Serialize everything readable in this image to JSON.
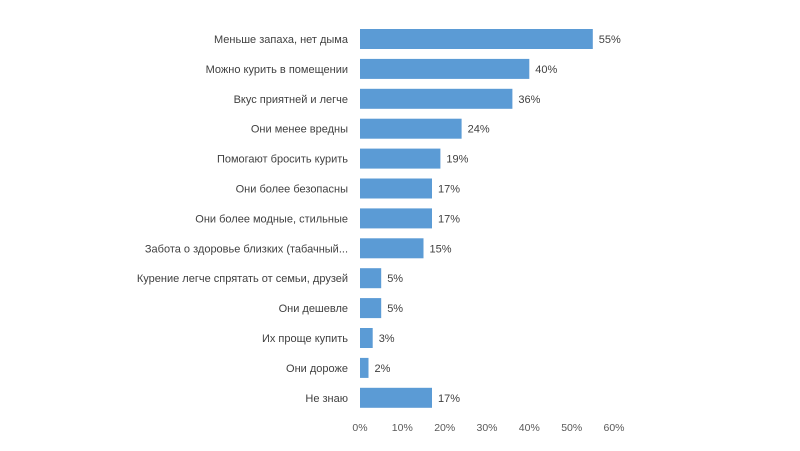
{
  "chart_data": {
    "type": "bar",
    "orientation": "horizontal",
    "categories": [
      "Меньше запаха, нет дыма",
      "Можно курить в помещении",
      "Вкус приятней и легче",
      "Они менее вредны",
      "Помогают бросить курить",
      "Они более безопасны",
      "Они более модные, стильные",
      "Забота о здоровье близких (табачный...",
      "Курение легче спрятать от семьи, друзей",
      "Они дешевле",
      "Их проще купить",
      "Они дороже",
      "Не знаю"
    ],
    "values": [
      55,
      40,
      36,
      24,
      19,
      17,
      17,
      15,
      5,
      5,
      3,
      2,
      17
    ],
    "data_labels": [
      "55%",
      "40%",
      "36%",
      "24%",
      "19%",
      "17%",
      "17%",
      "15%",
      "5%",
      "5%",
      "3%",
      "2%",
      "17%"
    ],
    "x_ticks": [
      0,
      10,
      20,
      30,
      40,
      50,
      60
    ],
    "x_tick_labels": [
      "0%",
      "10%",
      "20%",
      "30%",
      "40%",
      "50%",
      "60%"
    ],
    "xlim": [
      0,
      60
    ],
    "grid": false,
    "legend": "none",
    "bar_color": "#5b9bd5"
  }
}
